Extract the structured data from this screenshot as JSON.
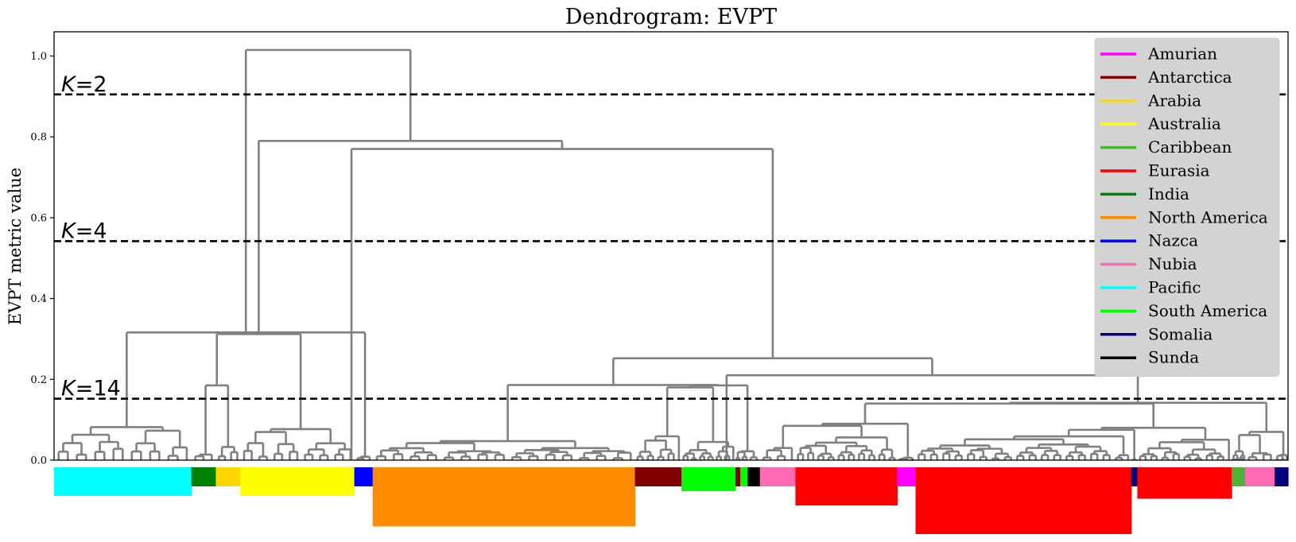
{
  "chart_data": {
    "type": "dendrogram",
    "title": "Dendrogram: EVPT",
    "ylabel": "EVPT metric value",
    "xlabel": "",
    "ylim": [
      0,
      1.06
    ],
    "yticks": [
      0.0,
      0.2,
      0.4,
      0.6,
      0.8,
      1.0
    ],
    "ytick_labels": [
      "0.0",
      "0.2",
      "0.4",
      "0.6",
      "0.8",
      "1.0"
    ],
    "grid": false,
    "thresholds": [
      {
        "label": "K=2",
        "y": 0.905
      },
      {
        "label": "K=4",
        "y": 0.542
      },
      {
        "label": "K=14",
        "y": 0.152
      }
    ],
    "major_merges": [
      {
        "x": [
          0.037,
          0.285
        ],
        "y": 1.015
      },
      {
        "x": [
          0.168,
          0.4
        ],
        "y": 0.79
      },
      {
        "x": [
          0.25,
          0.55
        ],
        "y": 0.77
      },
      {
        "x": [
          0.4,
          0.7
        ],
        "y": 0.252
      },
      {
        "x": [
          0.573,
          0.834
        ],
        "y": 0.21
      },
      {
        "x": [
          0.045,
          0.07
        ],
        "y": 0.316
      },
      {
        "x": [
          0.13,
          0.207
        ],
        "y": 0.312
      },
      {
        "x": [
          0.17,
          0.235
        ],
        "y": 0.222
      },
      {
        "x": [
          0.315,
          0.495
        ],
        "y": 0.186
      },
      {
        "x": [
          0.7,
          0.94
        ],
        "y": 0.142
      }
    ],
    "legend": {
      "placement": "top-right",
      "items": [
        {
          "label": "Amurian",
          "color": "#ff00ff"
        },
        {
          "label": "Antarctica",
          "color": "#800000"
        },
        {
          "label": "Arabia",
          "color": "#ffd700"
        },
        {
          "label": "Australia",
          "color": "#ffff00"
        },
        {
          "label": "Caribbean",
          "color": "#4db336"
        },
        {
          "label": "Eurasia",
          "color": "#ff0000"
        },
        {
          "label": "India",
          "color": "#008000"
        },
        {
          "label": "North America",
          "color": "#ff8c00"
        },
        {
          "label": "Nazca",
          "color": "#0000ff"
        },
        {
          "label": "Nubia",
          "color": "#ff69b4"
        },
        {
          "label": "Pacific",
          "color": "#00ffff"
        },
        {
          "label": "South America",
          "color": "#00ff00"
        },
        {
          "label": "Somalia",
          "color": "#000080"
        },
        {
          "label": "Sunda",
          "color": "#000000"
        }
      ]
    },
    "leaf_plate_order": [
      {
        "plate": "Pacific",
        "fraction": 0.112,
        "count": 30
      },
      {
        "plate": "India",
        "fraction": 0.02,
        "count": 6
      },
      {
        "plate": "Arabia",
        "fraction": 0.02,
        "count": 8
      },
      {
        "plate": "Australia",
        "fraction": 0.093,
        "count": 30
      },
      {
        "plate": "Nazca",
        "fraction": 0.015,
        "count": 6
      },
      {
        "plate": "North America",
        "fraction": 0.214,
        "count": 62
      },
      {
        "plate": "Antarctica",
        "fraction": 0.038,
        "count": 18
      },
      {
        "plate": "South America",
        "fraction": 0.044,
        "count": 25
      },
      {
        "plate": "Antarctica",
        "fraction": 0.004,
        "count": 3
      },
      {
        "plate": "South America",
        "fraction": 0.006,
        "count": 6
      },
      {
        "plate": "Sunda",
        "fraction": 0.01,
        "count": 4
      },
      {
        "plate": "Nubia",
        "fraction": 0.029,
        "count": 10
      },
      {
        "plate": "Eurasia",
        "fraction": 0.083,
        "count": 40
      },
      {
        "plate": "Amurian",
        "fraction": 0.015,
        "count": 11
      },
      {
        "plate": "Eurasia",
        "fraction": 0.176,
        "count": 70
      },
      {
        "plate": "Somalia",
        "fraction": 0.005,
        "count": 3
      },
      {
        "plate": "Eurasia",
        "fraction": 0.077,
        "count": 33
      },
      {
        "plate": "Caribbean",
        "fraction": 0.011,
        "count": 14
      },
      {
        "plate": "Nubia",
        "fraction": 0.024,
        "count": 8
      },
      {
        "plate": "Somalia",
        "fraction": 0.011,
        "count": 10
      }
    ]
  }
}
